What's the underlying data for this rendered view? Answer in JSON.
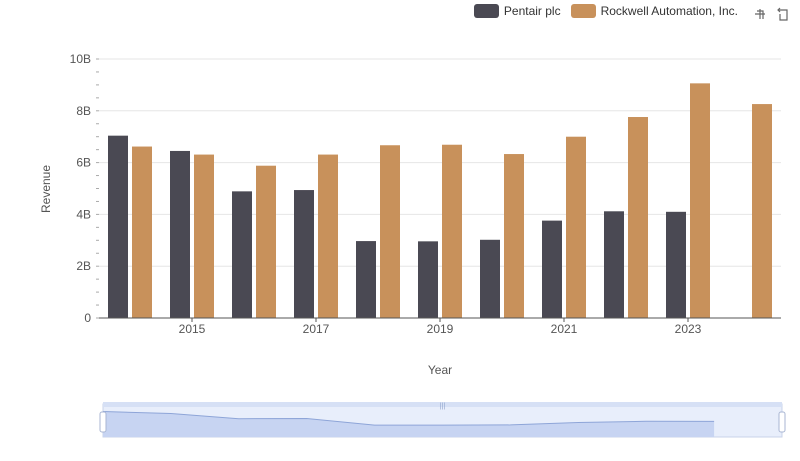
{
  "colors": {
    "pentair": "#4a4953",
    "rockwell": "#c8915b",
    "grid": "#e6e6e6",
    "axis": "#555555"
  },
  "legend": [
    {
      "label": "Pentair plc",
      "color": "#4a4953"
    },
    {
      "label": "Rockwell Automation, Inc.",
      "color": "#c8915b"
    }
  ],
  "toolbox": {
    "zoom_icon": "zoom-icon",
    "restore_icon": "restore-icon"
  },
  "chart_data": {
    "type": "bar",
    "categories": [
      "2014",
      "2015",
      "2016",
      "2017",
      "2018",
      "2019",
      "2020",
      "2021",
      "2022",
      "2023",
      "2024"
    ],
    "tick_labels": [
      "2015",
      "2017",
      "2019",
      "2021",
      "2023"
    ],
    "series": [
      {
        "name": "Pentair plc",
        "values": [
          7.04,
          6.45,
          4.89,
          4.94,
          2.97,
          2.96,
          3.02,
          3.76,
          4.12,
          4.1,
          null
        ]
      },
      {
        "name": "Rockwell Automation, Inc.",
        "values": [
          6.62,
          6.31,
          5.88,
          6.31,
          6.67,
          6.69,
          6.33,
          7.0,
          7.76,
          9.06,
          8.26
        ]
      }
    ],
    "xlabel": "Year",
    "ylabel": "Revenue",
    "ylim": [
      0,
      10
    ],
    "yticks": [
      "0",
      "2B",
      "4B",
      "6B",
      "8B",
      "10B"
    ],
    "grid": true,
    "legend_position": "top-right"
  }
}
